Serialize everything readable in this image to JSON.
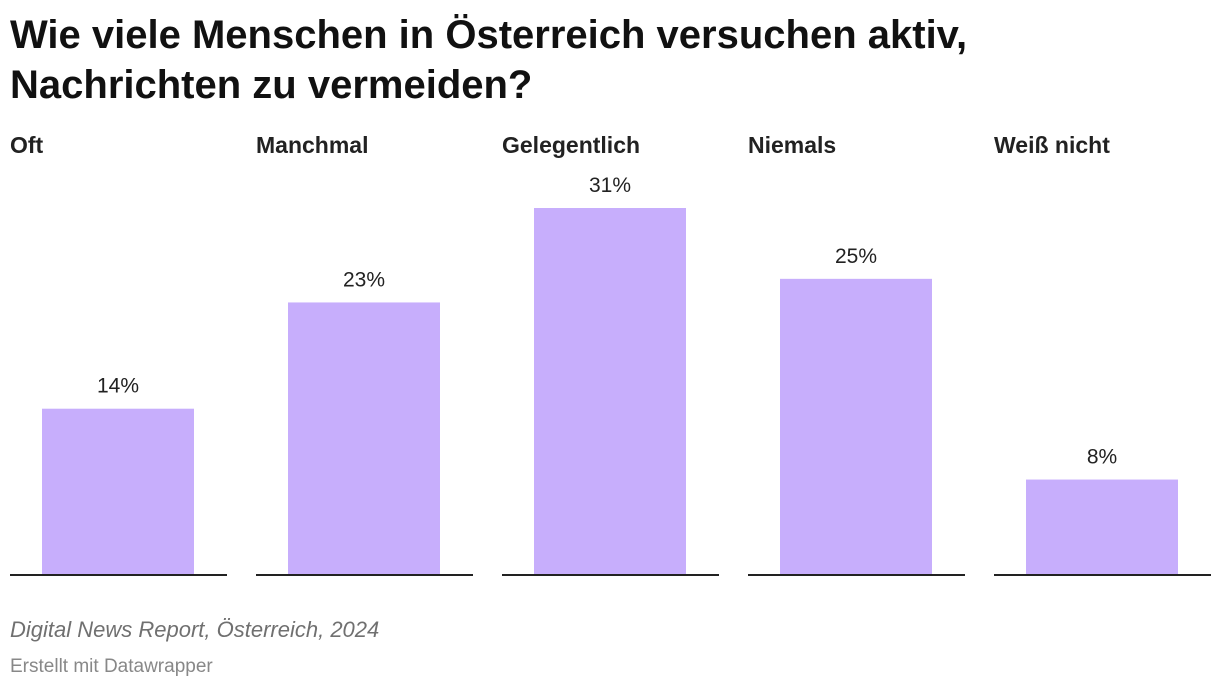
{
  "header": {
    "title": "Wie viele Menschen in Österreich versuchen aktiv, Nachrichten zu vermeiden?"
  },
  "chart_data": {
    "type": "bar",
    "title": "Wie viele Menschen in Österreich versuchen aktiv, Nachrichten zu vermeiden?",
    "categories": [
      "Oft",
      "Manchmal",
      "Gelegentlich",
      "Niemals",
      "Weiß nicht"
    ],
    "values": [
      14,
      23,
      31,
      25,
      8
    ],
    "value_labels": [
      "14%",
      "23%",
      "31%",
      "25%",
      "8%"
    ],
    "unit": "%",
    "xlabel": "",
    "ylabel": "",
    "ylim": [
      0,
      31
    ],
    "grid": false,
    "bar_color": "#c7aefc",
    "axis_color": "#222222"
  },
  "footer": {
    "source": "Digital News Report, Österreich, 2024",
    "credit": "Erstellt mit Datawrapper"
  }
}
